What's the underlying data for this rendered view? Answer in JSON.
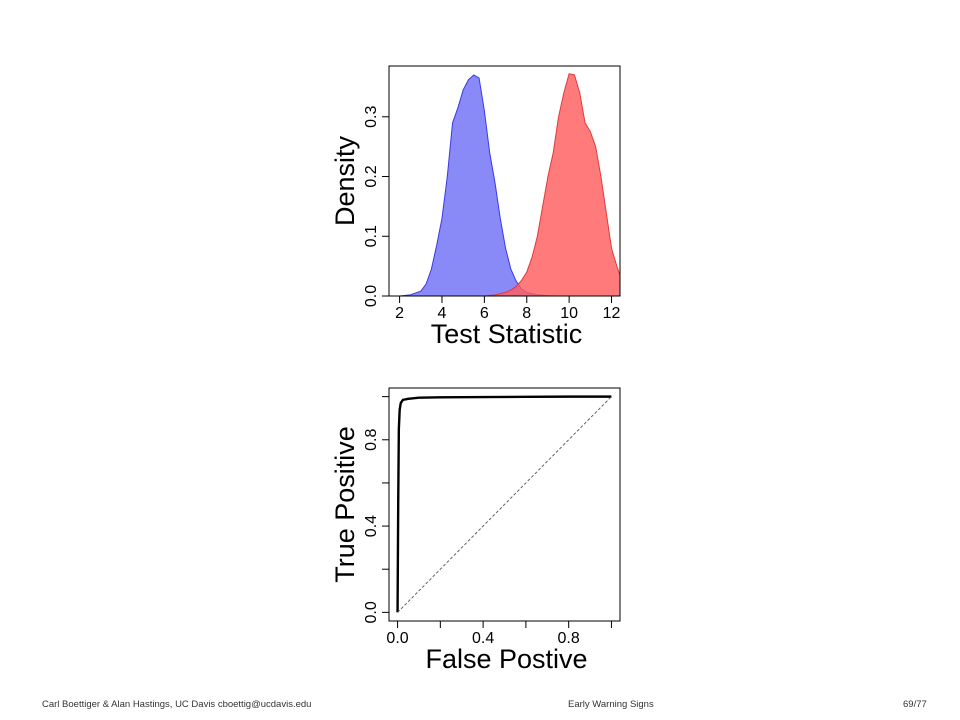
{
  "footer": {
    "authors": "Carl Boettiger & Alan Hastings, UC Davis cboettig@ucdavis.edu",
    "title": "Early Warning Signs",
    "page": "69/77"
  },
  "chart_data": [
    {
      "type": "area",
      "xlabel": "Test Statistic",
      "ylabel": "Density",
      "xlim": [
        1.5,
        12.4
      ],
      "ylim": [
        0,
        0.385
      ],
      "xticks": [
        2,
        4,
        6,
        8,
        10,
        12
      ],
      "yticks": [
        0.0,
        0.1,
        0.2,
        0.3
      ],
      "xtick_labels": [
        "2",
        "4",
        "6",
        "8",
        "10",
        "12"
      ],
      "ytick_labels": [
        "0.0",
        "0.1",
        "0.2",
        "0.3"
      ],
      "grid": false,
      "series": [
        {
          "color": "#6f6ff6",
          "stroke": "#3a3ae6",
          "x": [
            1.5,
            2.0,
            2.5,
            3.0,
            3.25,
            3.5,
            3.75,
            4.0,
            4.25,
            4.5,
            4.75,
            5.0,
            5.25,
            5.5,
            5.75,
            6.0,
            6.25,
            6.5,
            6.75,
            7.0,
            7.25,
            7.5,
            7.75,
            8.0,
            8.5,
            9.0,
            9.5
          ],
          "y": [
            0.0,
            0.0,
            0.002,
            0.008,
            0.02,
            0.045,
            0.085,
            0.13,
            0.2,
            0.29,
            0.315,
            0.345,
            0.362,
            0.37,
            0.365,
            0.31,
            0.24,
            0.19,
            0.13,
            0.08,
            0.045,
            0.025,
            0.012,
            0.006,
            0.002,
            0.0005,
            0.0
          ]
        },
        {
          "color": "#ff5e5e",
          "stroke": "#e03a3a",
          "x": [
            6.0,
            6.5,
            7.0,
            7.25,
            7.5,
            7.75,
            8.0,
            8.25,
            8.5,
            8.75,
            9.0,
            9.25,
            9.5,
            9.75,
            10.0,
            10.25,
            10.5,
            10.75,
            11.0,
            11.25,
            11.5,
            11.75,
            12.0,
            12.25,
            12.4
          ],
          "y": [
            0.0,
            0.002,
            0.006,
            0.01,
            0.016,
            0.026,
            0.04,
            0.065,
            0.1,
            0.15,
            0.2,
            0.24,
            0.3,
            0.34,
            0.372,
            0.37,
            0.34,
            0.29,
            0.275,
            0.25,
            0.2,
            0.14,
            0.08,
            0.05,
            0.035
          ]
        }
      ]
    },
    {
      "type": "line",
      "xlabel": "False Postive",
      "ylabel": "True Positive",
      "xlim": [
        -0.04,
        1.04
      ],
      "ylim": [
        -0.04,
        1.04
      ],
      "xticks": [
        0.0,
        0.4,
        0.8
      ],
      "yticks": [
        0.0,
        0.4,
        0.8
      ],
      "xtick_labels": [
        "0.0",
        "0.4",
        "0.8"
      ],
      "ytick_labels": [
        "0.0",
        "0.4",
        "0.8"
      ],
      "grid": false,
      "series": [
        {
          "style": "solid",
          "x": [
            0.0,
            0.003,
            0.006,
            0.01,
            0.015,
            0.025,
            0.05,
            0.1,
            0.2,
            0.4,
            0.6,
            0.8,
            1.0
          ],
          "y": [
            0.0,
            0.5,
            0.85,
            0.94,
            0.97,
            0.985,
            0.99,
            0.995,
            0.997,
            0.998,
            0.999,
            1.0,
            1.0
          ]
        },
        {
          "style": "dashed",
          "x": [
            0.0,
            1.0
          ],
          "y": [
            0.0,
            1.0
          ]
        }
      ]
    }
  ]
}
